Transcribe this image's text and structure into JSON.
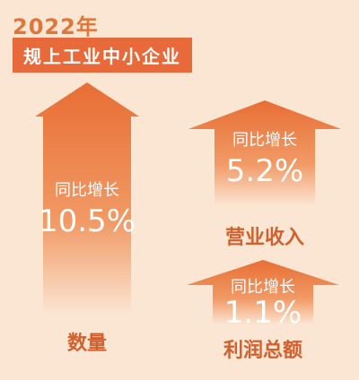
{
  "header": {
    "year": "2022年",
    "subtitle": "规上工业中小企业"
  },
  "chart_data": {
    "type": "bar",
    "categories": [
      "数量",
      "营业收入",
      "利润总额"
    ],
    "values": [
      10.5,
      5.2,
      1.1
    ],
    "value_labels": [
      "10.5%",
      "5.2%",
      "1.1%"
    ],
    "caption": "同比增长",
    "colors": {
      "arrow_top": "#e86e34",
      "arrow_bottom": "#fbe6d4",
      "text": "#ffffff",
      "category": "#d2602e"
    }
  }
}
